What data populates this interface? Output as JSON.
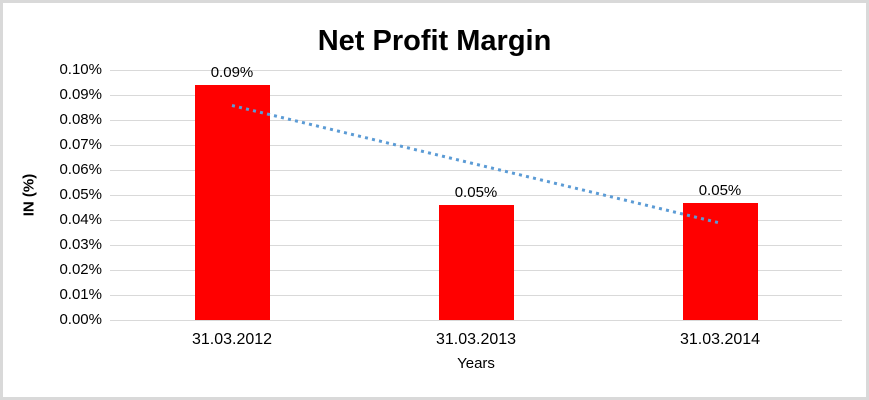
{
  "chart_data": {
    "type": "bar",
    "title": "Net Profit Margin",
    "xlabel": "Years",
    "ylabel": "IN (%)",
    "categories": [
      "31.03.2012",
      "31.03.2013",
      "31.03.2014"
    ],
    "values": [
      0.094,
      0.046,
      0.047
    ],
    "data_labels": [
      "0.09%",
      "0.05%",
      "0.05%"
    ],
    "y_ticks": [
      "0.10%",
      "0.09%",
      "0.08%",
      "0.07%",
      "0.06%",
      "0.05%",
      "0.04%",
      "0.03%",
      "0.02%",
      "0.01%",
      "0.00%"
    ],
    "ylim": [
      0,
      0.1
    ],
    "grid": true,
    "legend": "none",
    "bar_color": "#ff0000",
    "gridline_color": "#d9d9d9",
    "text_color": "#000000",
    "trendline": {
      "type": "linear",
      "style": "dotted",
      "color": "#5b9bd5",
      "start_value": 0.0858,
      "end_value": 0.0388
    }
  }
}
